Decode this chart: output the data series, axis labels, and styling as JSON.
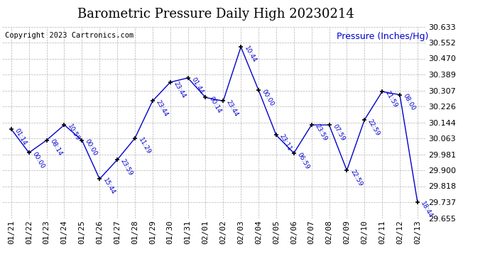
{
  "title": "Barometric Pressure Daily High 20230214",
  "ylabel_text": "Pressure (Inches/Hg)",
  "copyright": "Copyright 2023 Cartronics.com",
  "x_labels": [
    "01/21",
    "01/22",
    "01/23",
    "01/24",
    "01/25",
    "01/26",
    "01/27",
    "01/28",
    "01/29",
    "01/30",
    "01/31",
    "02/01",
    "02/02",
    "02/03",
    "02/04",
    "02/05",
    "02/06",
    "02/07",
    "02/08",
    "02/09",
    "02/10",
    "02/11",
    "02/12",
    "02/13"
  ],
  "y_values": [
    30.109,
    29.989,
    30.053,
    30.131,
    30.053,
    29.855,
    29.953,
    30.063,
    30.253,
    30.349,
    30.371,
    30.271,
    30.253,
    30.529,
    30.309,
    30.079,
    29.987,
    30.131,
    30.131,
    29.899,
    30.157,
    30.301,
    30.285,
    29.737
  ],
  "point_labels": [
    "01:14",
    "00:00",
    "08:14",
    "10:59",
    "00:00",
    "15:44",
    "23:59",
    "11:29",
    "23:44",
    "23:44",
    "01:44",
    "00:14",
    "23:44",
    "10:44",
    "00:00",
    "23:11",
    "06:59",
    "23:59",
    "07:59",
    "22:59",
    "22:59",
    "21:59",
    "08:00",
    "18:44"
  ],
  "ylim_min": 29.655,
  "ylim_max": 30.633,
  "yticks": [
    29.655,
    29.737,
    29.818,
    29.9,
    29.981,
    30.063,
    30.144,
    30.226,
    30.307,
    30.389,
    30.47,
    30.552,
    30.633
  ],
  "line_color": "#0000cc",
  "marker_color": "#000000",
  "grid_color": "#aaaaaa",
  "bg_color": "#ffffff",
  "title_fontsize": 13,
  "tick_fontsize": 8,
  "copyright_fontsize": 7.5,
  "ylabel_fontsize": 9,
  "point_label_fontsize": 6.5
}
